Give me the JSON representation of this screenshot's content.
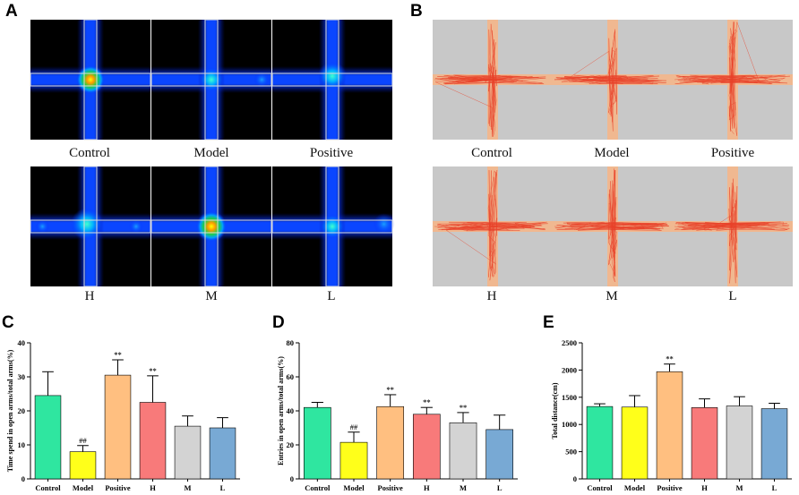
{
  "panels": {
    "A": {
      "label": "A",
      "captions_top": [
        "Control",
        "Model",
        "Positive"
      ],
      "captions_bottom": [
        "H",
        "M",
        "L"
      ]
    },
    "B": {
      "label": "B",
      "captions_top": [
        "Control",
        "Model",
        "Positive"
      ],
      "captions_bottom": [
        "H",
        "M",
        "L"
      ]
    }
  },
  "colors": {
    "Control": "#2fe6a0",
    "Model": "#ffff1a",
    "Positive": "#ffbf80",
    "H": "#f87a7a",
    "M": "#d3d3d3",
    "L": "#78a9d4",
    "heatmap_bg": "#000000",
    "track_bg": "#c8c8c8",
    "track_arm": "#f0b890",
    "track_path": "#e8422a"
  },
  "chart_data": [
    {
      "panel": "C",
      "type": "bar",
      "title": "",
      "xlabel": "",
      "ylabel": "Time spend in open arms/total arms(%)",
      "ylim": [
        0,
        40
      ],
      "yticks": [
        "0",
        "10",
        "20",
        "30",
        "40"
      ],
      "categories": [
        "Control",
        "Model",
        "Positive",
        "H",
        "M",
        "L"
      ],
      "values": [
        24.5,
        8,
        30.5,
        22.5,
        15.5,
        15
      ],
      "errors": [
        7,
        1.8,
        4.5,
        7.8,
        3,
        3
      ],
      "annotations": [
        "",
        "##",
        "**",
        "**",
        "",
        ""
      ]
    },
    {
      "panel": "D",
      "type": "bar",
      "title": "",
      "xlabel": "",
      "ylabel": "Entries in open arms/total arms(%)",
      "ylim": [
        0,
        80
      ],
      "yticks": [
        "0",
        "20",
        "40",
        "60",
        "80"
      ],
      "categories": [
        "Control",
        "Model",
        "Positive",
        "H",
        "M",
        "L"
      ],
      "values": [
        42,
        21.5,
        42.5,
        38,
        33,
        29
      ],
      "errors": [
        3,
        6,
        7,
        4,
        6,
        8.5
      ],
      "annotations": [
        "",
        "##",
        "**",
        "**",
        "**",
        ""
      ]
    },
    {
      "panel": "E",
      "type": "bar",
      "title": "",
      "xlabel": "",
      "ylabel": "Total distance(cm)",
      "ylim": [
        0,
        2500
      ],
      "yticks": [
        "0",
        "500",
        "1000",
        "1500",
        "2000",
        "2500"
      ],
      "categories": [
        "Control",
        "Model",
        "Positive",
        "H",
        "M",
        "L"
      ],
      "values": [
        1330,
        1320,
        1970,
        1310,
        1340,
        1290
      ],
      "errors": [
        50,
        210,
        140,
        160,
        170,
        100
      ],
      "annotations": [
        "",
        "",
        "**",
        "",
        "",
        ""
      ]
    }
  ]
}
